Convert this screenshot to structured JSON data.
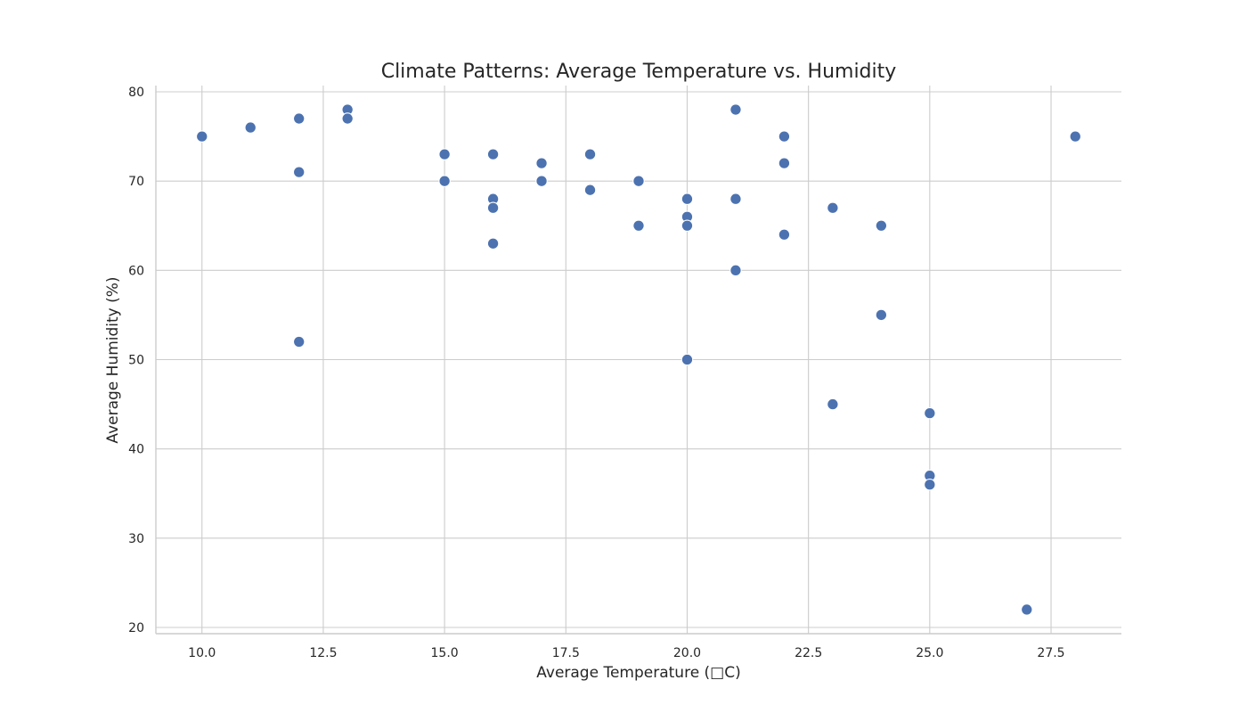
{
  "chart_data": {
    "type": "scatter",
    "title": "Climate Patterns: Average Temperature vs. Humidity",
    "xlabel": "Average Temperature (□C)",
    "ylabel": "Average Humidity (%)",
    "xlim": [
      9.05,
      28.95
    ],
    "ylim": [
      19.3,
      80.7
    ],
    "xticks": [
      10.0,
      12.5,
      15.0,
      17.5,
      20.0,
      22.5,
      25.0,
      27.5
    ],
    "xtick_labels": [
      "10.0",
      "12.5",
      "15.0",
      "17.5",
      "20.0",
      "22.5",
      "25.0",
      "27.5"
    ],
    "yticks": [
      20,
      30,
      40,
      50,
      60,
      70,
      80
    ],
    "ytick_labels": [
      "20",
      "30",
      "40",
      "50",
      "60",
      "70",
      "80"
    ],
    "grid": true,
    "marker_color": "#4c72b0",
    "points": [
      {
        "x": 10,
        "y": 75
      },
      {
        "x": 11,
        "y": 76
      },
      {
        "x": 12,
        "y": 77
      },
      {
        "x": 12,
        "y": 71
      },
      {
        "x": 12,
        "y": 52
      },
      {
        "x": 13,
        "y": 78
      },
      {
        "x": 13,
        "y": 77
      },
      {
        "x": 15,
        "y": 73
      },
      {
        "x": 15,
        "y": 70
      },
      {
        "x": 16,
        "y": 73
      },
      {
        "x": 16,
        "y": 68
      },
      {
        "x": 16,
        "y": 67
      },
      {
        "x": 16,
        "y": 63
      },
      {
        "x": 17,
        "y": 72
      },
      {
        "x": 17,
        "y": 70
      },
      {
        "x": 18,
        "y": 73
      },
      {
        "x": 18,
        "y": 69
      },
      {
        "x": 19,
        "y": 70
      },
      {
        "x": 19,
        "y": 65
      },
      {
        "x": 20,
        "y": 68
      },
      {
        "x": 20,
        "y": 66
      },
      {
        "x": 20,
        "y": 65
      },
      {
        "x": 20,
        "y": 50
      },
      {
        "x": 21,
        "y": 78
      },
      {
        "x": 21,
        "y": 68
      },
      {
        "x": 21,
        "y": 60
      },
      {
        "x": 22,
        "y": 75
      },
      {
        "x": 22,
        "y": 72
      },
      {
        "x": 22,
        "y": 64
      },
      {
        "x": 23,
        "y": 67
      },
      {
        "x": 23,
        "y": 45
      },
      {
        "x": 24,
        "y": 65
      },
      {
        "x": 24,
        "y": 55
      },
      {
        "x": 25,
        "y": 44
      },
      {
        "x": 25,
        "y": 37
      },
      {
        "x": 25,
        "y": 36
      },
      {
        "x": 27,
        "y": 22
      },
      {
        "x": 28,
        "y": 75
      }
    ]
  }
}
